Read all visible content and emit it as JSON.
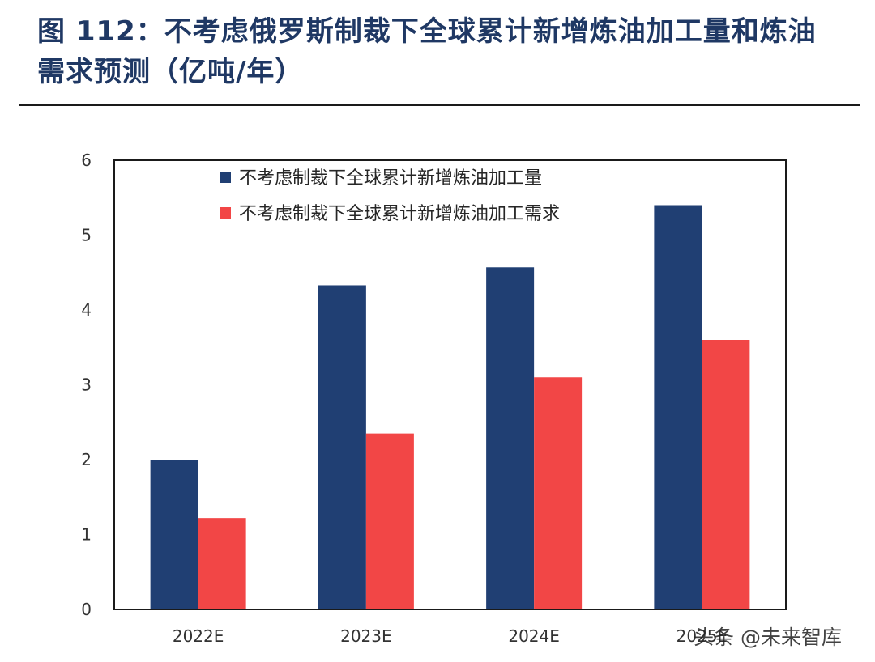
{
  "page": {
    "title_line1": "图 112：不考虑俄罗斯制裁下全球累计新增炼油加工量和炼油",
    "title_line2": "需求预测（亿吨/年）",
    "watermark": "头条 @未来智库"
  },
  "chart_data": {
    "type": "bar",
    "title": "图 112：不考虑俄罗斯制裁下全球累计新增炼油加工量和炼油需求预测（亿吨/年）",
    "xlabel": "",
    "ylabel": "",
    "categories": [
      "2022E",
      "2023E",
      "2024E",
      "2025E"
    ],
    "ylim": [
      0,
      6
    ],
    "yticks": [
      0,
      1,
      2,
      3,
      4,
      5,
      6
    ],
    "grid": false,
    "legend_position": "top-left",
    "series": [
      {
        "name": "不考虑制裁下全球累计新增炼油加工量",
        "color": "#203f73",
        "values": [
          2.0,
          4.33,
          4.57,
          5.4
        ]
      },
      {
        "name": "不考虑制裁下全球累计新增炼油加工需求",
        "color": "#f24646",
        "values": [
          1.22,
          2.35,
          3.1,
          3.6
        ]
      }
    ]
  }
}
